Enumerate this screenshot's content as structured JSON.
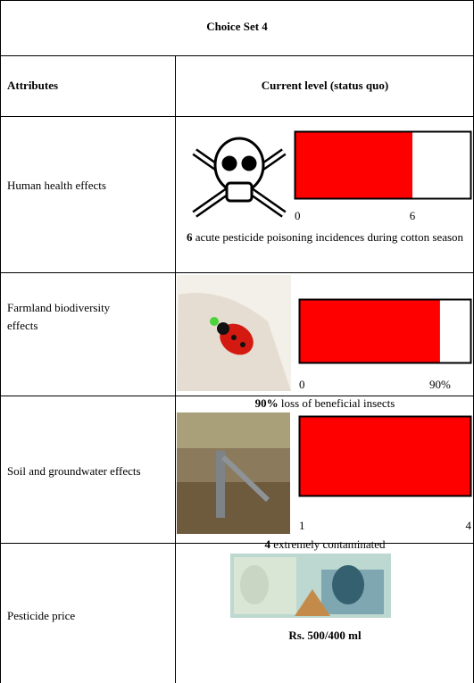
{
  "title": "Choice Set 4",
  "header": [
    "Attributes",
    "Current level (status quo)"
  ],
  "rows": [
    {
      "attribute": "Human health effects",
      "bar": {
        "value": 6,
        "xlim": [
          0,
          9
        ],
        "ticks": [
          0,
          6
        ],
        "color": "#ff0000"
      },
      "caption": {
        "bold": "6",
        "text": " acute pesticide poisoning incidences during cotton season"
      }
    },
    {
      "attribute": "Farmland biodiversity effects",
      "bar": {
        "value": 90,
        "xlim": [
          0,
          110
        ],
        "ticks": [
          0,
          {
            "value": 90,
            "label": "90%"
          }
        ],
        "color": "#ff0000"
      },
      "caption": {
        "bold": "90%",
        "text": " loss of beneficial insects"
      }
    },
    {
      "attribute": "Soil and groundwater effects",
      "bar": {
        "value": 4,
        "xlim": [
          1,
          4
        ],
        "ticks": [
          1,
          4
        ],
        "color": "#ff0000"
      },
      "caption": {
        "bold": "4",
        "text": " extremely contaminated"
      }
    },
    {
      "attribute": "Pesticide price",
      "caption": {
        "bold": "Rs. 500/400 ml"
      }
    }
  ]
}
